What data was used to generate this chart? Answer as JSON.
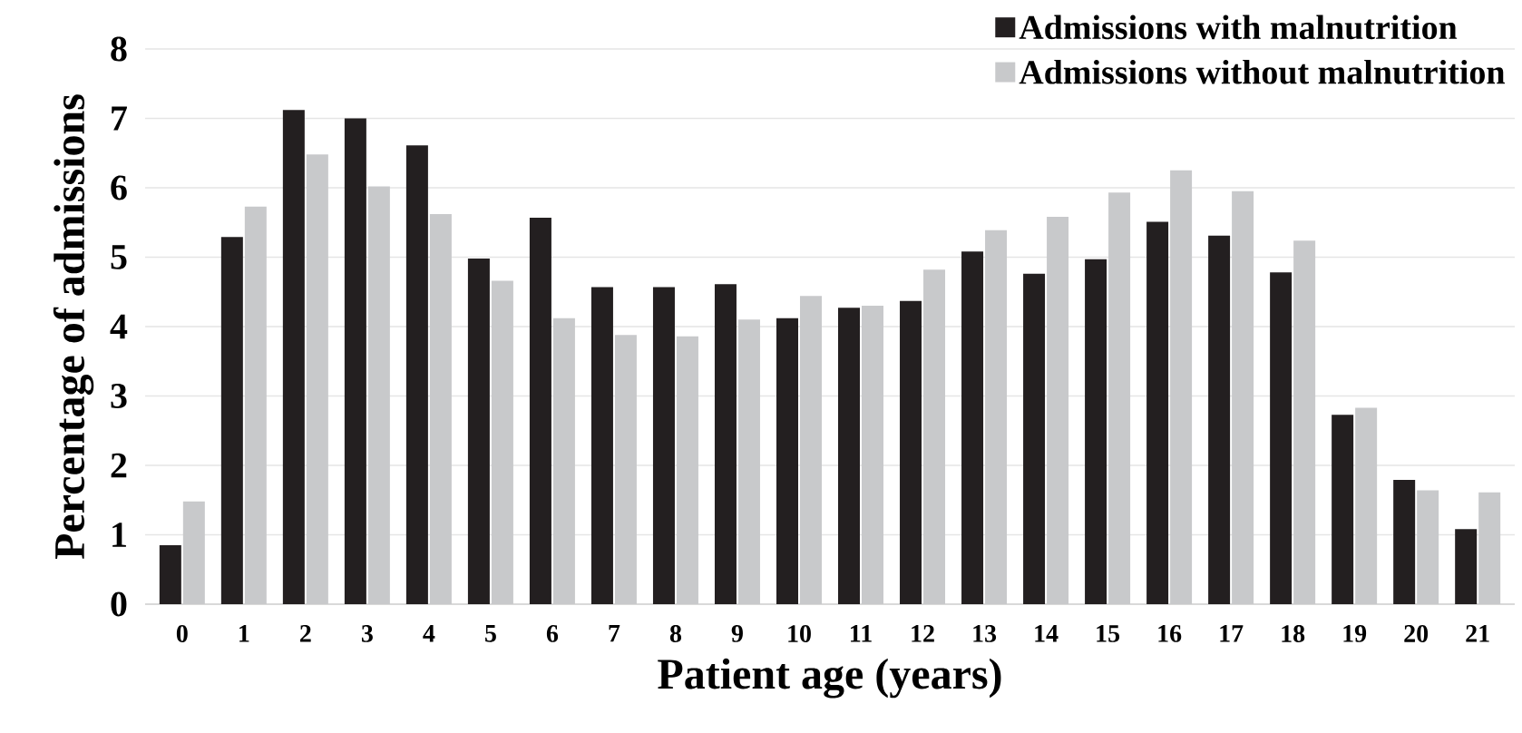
{
  "chart_data": {
    "type": "bar",
    "xlabel": "Patient age (years)",
    "ylabel": "Percentage of admissions",
    "categories": [
      "0",
      "1",
      "2",
      "3",
      "4",
      "5",
      "6",
      "7",
      "8",
      "9",
      "10",
      "11",
      "12",
      "13",
      "14",
      "15",
      "16",
      "17",
      "18",
      "19",
      "20",
      "21"
    ],
    "series": [
      {
        "name": "Admissions with malnutrition",
        "color": "#231f20",
        "values": [
          0.85,
          5.29,
          7.12,
          7.0,
          6.61,
          4.98,
          5.57,
          4.57,
          4.57,
          4.61,
          4.12,
          4.27,
          4.37,
          5.08,
          4.76,
          4.97,
          5.51,
          5.31,
          4.78,
          2.73,
          1.79,
          1.08
        ]
      },
      {
        "name": "Admissions without malnutrition",
        "color": "#c8c9cb",
        "values": [
          1.48,
          5.73,
          6.48,
          6.02,
          5.62,
          4.66,
          4.12,
          3.88,
          3.86,
          4.1,
          4.44,
          4.3,
          4.82,
          5.39,
          5.58,
          5.93,
          6.25,
          5.95,
          5.24,
          2.83,
          1.64,
          1.61
        ]
      }
    ],
    "ylim": [
      0,
      8
    ],
    "yticks": [
      0,
      1,
      2,
      3,
      4,
      5,
      6,
      7,
      8
    ],
    "grid": "y",
    "legend": "top right"
  }
}
